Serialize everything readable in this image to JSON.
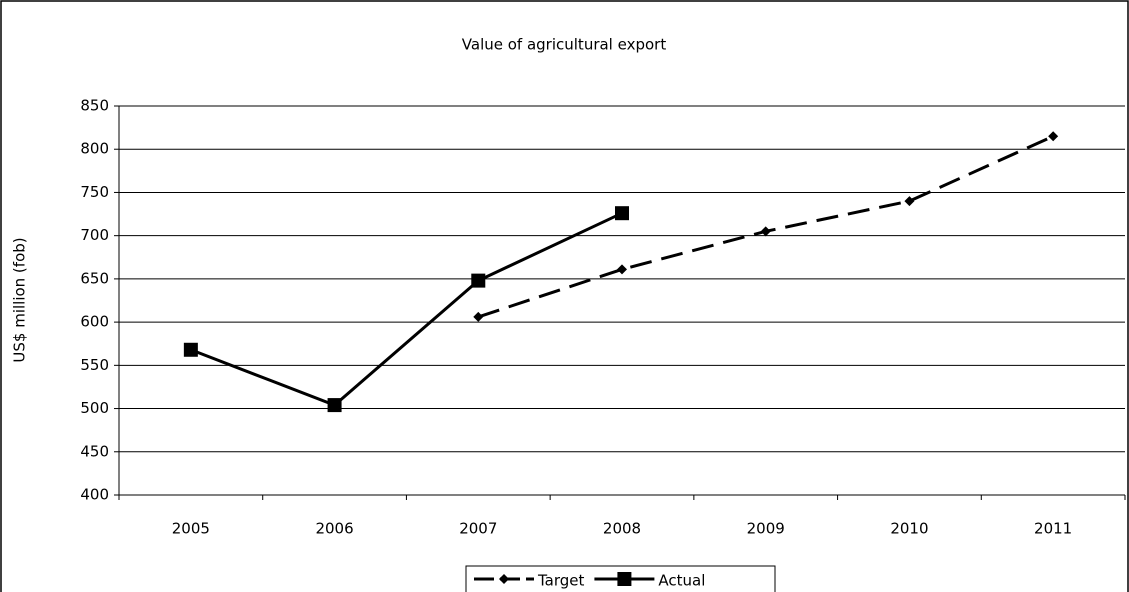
{
  "chart_data": {
    "type": "line",
    "title": "Value of agricultural export",
    "y_label": "US$ million (fob)",
    "categories": [
      "2005",
      "2006",
      "2007",
      "2008",
      "2009",
      "2010",
      "2011"
    ],
    "series": [
      {
        "name": "Target",
        "color": "#000000",
        "line_style": "dashed",
        "marker": "diamond",
        "values": [
          null,
          null,
          606,
          661,
          705,
          740,
          815
        ]
      },
      {
        "name": "Actual",
        "color": "#000000",
        "line_style": "solid",
        "marker": "square",
        "values": [
          568,
          504,
          648,
          726,
          null,
          null,
          null
        ]
      }
    ],
    "ylim": [
      400,
      850
    ],
    "yticks": [
      400,
      450,
      500,
      550,
      600,
      650,
      700,
      750,
      800,
      850
    ],
    "grid": true,
    "legend": "bottom"
  }
}
